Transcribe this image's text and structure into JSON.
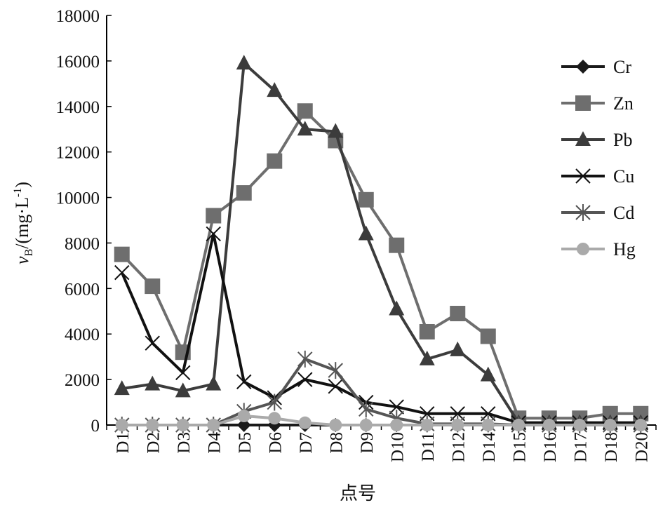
{
  "chart_data": {
    "type": "line",
    "xlabel": "点号",
    "ylabel": "vB/(mg·L-1)",
    "ylabel_parts": {
      "symbol": "v",
      "subscript": "B",
      "unit": "/(mg·L",
      "sup": "-1",
      "close": ")"
    },
    "ylim": [
      0,
      18000
    ],
    "yticks": [
      "0",
      "2000",
      "4000",
      "6000",
      "8000",
      "10000",
      "12000",
      "14000",
      "16000",
      "18000"
    ],
    "categories": [
      "D1",
      "D2",
      "D3",
      "D4",
      "D5",
      "D6",
      "D7",
      "D8",
      "D9",
      "D10",
      "D11",
      "D12",
      "D14",
      "D15",
      "D16",
      "D17",
      "D18",
      "D20"
    ],
    "grid": false,
    "legend_position": "right",
    "series": [
      {
        "name": "Cr",
        "marker": "diamond",
        "color": "#1a1a1a",
        "values": [
          0,
          0,
          0,
          0,
          0,
          0,
          0,
          0,
          0,
          0,
          0,
          0,
          0,
          0,
          0,
          0,
          0,
          0
        ]
      },
      {
        "name": "Zn",
        "marker": "square",
        "color": "#6e6e6e",
        "values": [
          7500,
          6100,
          3200,
          9200,
          10200,
          11600,
          13800,
          12500,
          9900,
          7900,
          4100,
          4900,
          3900,
          300,
          300,
          300,
          500,
          500
        ]
      },
      {
        "name": "Pb",
        "marker": "triangle",
        "color": "#3c3c3c",
        "values": [
          1600,
          1800,
          1500,
          1800,
          15900,
          14700,
          13000,
          12900,
          8400,
          5100,
          2900,
          3300,
          2200,
          100,
          100,
          100,
          100,
          100
        ]
      },
      {
        "name": "Cu",
        "marker": "x",
        "color": "#111111",
        "values": [
          6700,
          3600,
          2300,
          8400,
          1900,
          1200,
          2000,
          1700,
          1000,
          800,
          500,
          500,
          500,
          100,
          100,
          100,
          100,
          100
        ]
      },
      {
        "name": "Cd",
        "marker": "star",
        "color": "#555555",
        "values": [
          0,
          0,
          0,
          0,
          600,
          1000,
          2900,
          2400,
          700,
          300,
          50,
          50,
          50,
          0,
          0,
          0,
          0,
          0
        ]
      },
      {
        "name": "Hg",
        "marker": "circle",
        "color": "#aaaaaa",
        "values": [
          0,
          0,
          0,
          0,
          400,
          300,
          100,
          0,
          0,
          0,
          0,
          0,
          0,
          0,
          0,
          0,
          0,
          0
        ]
      }
    ]
  }
}
